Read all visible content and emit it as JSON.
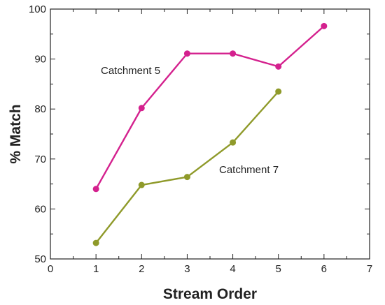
{
  "chart_data": {
    "type": "line",
    "xlabel": "Stream Order",
    "ylabel": "% Match",
    "xlim": [
      0,
      7
    ],
    "ylim": [
      50,
      100
    ],
    "x_ticks": [
      0,
      1,
      2,
      3,
      4,
      5,
      6,
      7
    ],
    "y_ticks": [
      50,
      60,
      70,
      80,
      90,
      100
    ],
    "grid": false,
    "series": [
      {
        "name": "Catchment 5",
        "color": "#d4218e",
        "x": [
          1,
          2,
          3,
          4,
          5,
          6
        ],
        "y": [
          64,
          80.2,
          91.1,
          91.1,
          88.5,
          96.6
        ]
      },
      {
        "name": "Catchment 7",
        "color": "#8f9a2a",
        "x": [
          1,
          2,
          3,
          4,
          5
        ],
        "y": [
          53.2,
          64.8,
          66.4,
          73.3,
          83.5
        ]
      }
    ]
  }
}
